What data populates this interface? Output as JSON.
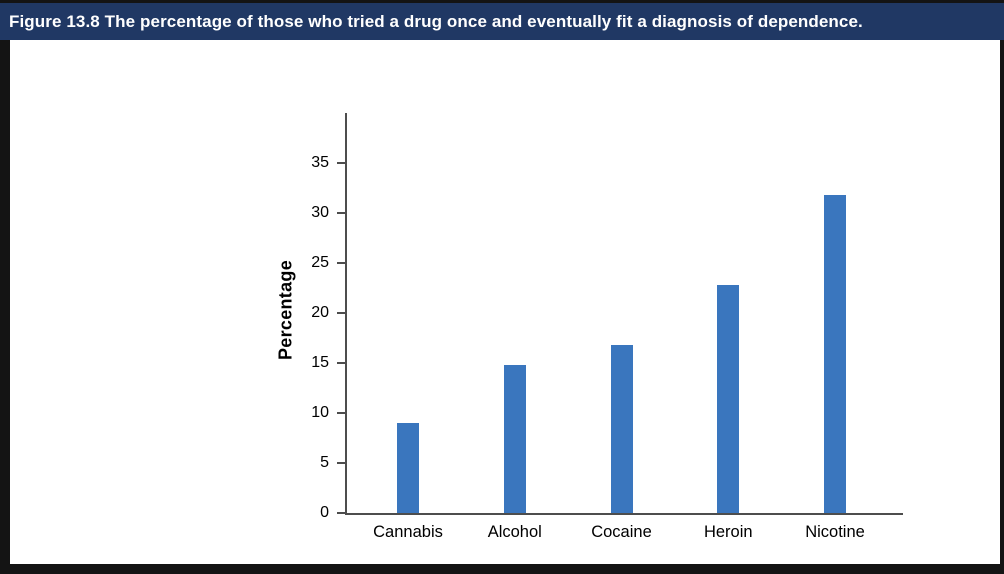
{
  "header": {
    "caption": "Figure 13.8 The percentage of those who tried a drug once and eventually fit a diagnosis of dependence."
  },
  "chart_data": {
    "type": "bar",
    "title": "Figure 13.8 The percentage of those who tried a drug once and eventually fit a diagnosis of dependence.",
    "categories": [
      "Cannabis",
      "Alcohol",
      "Cocaine",
      "Heroin",
      "Nicotine"
    ],
    "values": [
      9,
      14.8,
      16.8,
      22.8,
      31.8
    ],
    "xlabel": "",
    "ylabel": "Percentage",
    "ylim": [
      0,
      40
    ],
    "yticks": [
      0,
      5,
      10,
      15,
      20,
      25,
      30,
      35
    ],
    "grid": false,
    "legend": "none",
    "bar_color": "#3A76BE"
  },
  "colors": {
    "header_bg": "#203864",
    "header_text": "#FFFFFF",
    "bar": "#3A76BE",
    "axis": "#4D4D4D",
    "frame": "#141414",
    "plot_bg": "#FFFFFF"
  }
}
